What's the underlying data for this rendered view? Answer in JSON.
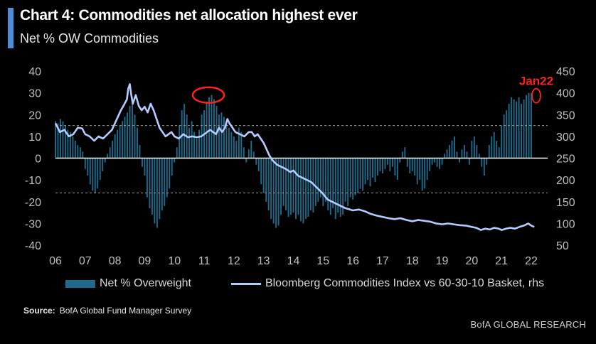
{
  "header": {
    "title": "Chart 4: Commodities net allocation highest ever",
    "subtitle": "Net % OW Commodities",
    "accent_color": "#4a90d9"
  },
  "footer": {
    "source_label": "Source:",
    "source_text": "BofA Global Fund Manager Survey",
    "brand": "BofA GLOBAL RESEARCH"
  },
  "chart_data": {
    "type": "bar",
    "title": "Chart 4: Commodities net allocation highest ever",
    "subtitle": "Net % OW Commodities",
    "x_range": [
      2006,
      2022.55
    ],
    "x_ticks": [
      "06",
      "07",
      "08",
      "09",
      "10",
      "11",
      "12",
      "13",
      "14",
      "15",
      "16",
      "17",
      "18",
      "19",
      "20",
      "21",
      "22"
    ],
    "y_left": {
      "range": [
        -40,
        40
      ],
      "ticks": [
        40,
        30,
        20,
        10,
        0,
        -10,
        -20,
        -30,
        -40
      ]
    },
    "y_right": {
      "range": [
        50,
        450
      ],
      "ticks": [
        450,
        400,
        350,
        300,
        250,
        200,
        150,
        100,
        50
      ]
    },
    "reference_lines": [
      15,
      -16
    ],
    "grid": false,
    "legend_position": "bottom",
    "colors": {
      "bars": "#1f6a8a",
      "line": "#b3cbff",
      "annotation": "#ff2020"
    },
    "annotations": [
      {
        "text": "Jan22",
        "x": 2022.0,
        "y": 29,
        "shape": "ellipse"
      },
      {
        "text": "",
        "x": 2011.0,
        "y": 28,
        "shape": "ellipse"
      }
    ],
    "series": [
      {
        "name": "Net % Overweight",
        "type": "bar",
        "axis": "left",
        "monthly_start": 2006.0,
        "values": [
          17,
          16,
          18,
          17,
          15,
          13,
          12,
          10,
          8,
          6,
          5,
          3,
          -5,
          -8,
          -12,
          -15,
          -16,
          -14,
          -10,
          -6,
          -2,
          2,
          5,
          8,
          11,
          13,
          15,
          17,
          19,
          21,
          24,
          25,
          20,
          14,
          6,
          -4,
          -8,
          -18,
          -23,
          -26,
          -30,
          -32,
          -28,
          -24,
          -22,
          -18,
          -14,
          -8,
          -2,
          5,
          15,
          22,
          25,
          20,
          14,
          17,
          12,
          9,
          13,
          20,
          22,
          26,
          28,
          29,
          27,
          24,
          20,
          21,
          19,
          16,
          14,
          12,
          10,
          8,
          14,
          12,
          5,
          -2,
          4,
          8,
          3,
          -3,
          -6,
          -12,
          -16,
          -20,
          -24,
          -28,
          -30,
          -32,
          -31,
          -26,
          -22,
          -24,
          -27,
          -26,
          -25,
          -28,
          -26,
          -29,
          -30,
          -28,
          -27,
          -24,
          -25,
          -22,
          -20,
          -18,
          -22,
          -20,
          -24,
          -26,
          -23,
          -28,
          -25,
          -27,
          -26,
          -20,
          -22,
          -18,
          -19,
          -17,
          -16,
          -14,
          -15,
          -12,
          -10,
          -13,
          -9,
          -11,
          -8,
          -6,
          -7,
          -5,
          -3,
          -6,
          -4,
          -8,
          -10,
          -2,
          3,
          5,
          -4,
          -7,
          -6,
          -8,
          -12,
          -10,
          -15,
          -14,
          -10,
          -6,
          -3,
          -2,
          -4,
          -5,
          -3,
          2,
          4,
          6,
          8,
          10,
          3,
          -2,
          4,
          6,
          3,
          -3,
          8,
          10,
          6,
          2,
          -4,
          -8,
          -3,
          6,
          10,
          12,
          8,
          5,
          15,
          20,
          22,
          25,
          28,
          27,
          26,
          28,
          25,
          27,
          29,
          30,
          30
        ]
      },
      {
        "name": "Bloomberg Commodities Index vs 60-30-10 Basket, rhs",
        "type": "line",
        "axis": "right",
        "points": [
          [
            2006.0,
            330
          ],
          [
            2006.15,
            310
          ],
          [
            2006.3,
            315
          ],
          [
            2006.45,
            300
          ],
          [
            2006.6,
            305
          ],
          [
            2006.75,
            320
          ],
          [
            2006.9,
            318
          ],
          [
            2007.0,
            305
          ],
          [
            2007.15,
            300
          ],
          [
            2007.3,
            290
          ],
          [
            2007.45,
            300
          ],
          [
            2007.6,
            295
          ],
          [
            2007.75,
            305
          ],
          [
            2007.9,
            315
          ],
          [
            2008.0,
            330
          ],
          [
            2008.1,
            345
          ],
          [
            2008.2,
            360
          ],
          [
            2008.3,
            372
          ],
          [
            2008.4,
            385
          ],
          [
            2008.45,
            410
          ],
          [
            2008.5,
            420
          ],
          [
            2008.55,
            395
          ],
          [
            2008.6,
            375
          ],
          [
            2008.7,
            395
          ],
          [
            2008.8,
            370
          ],
          [
            2008.9,
            360
          ],
          [
            2009.0,
            368
          ],
          [
            2009.1,
            355
          ],
          [
            2009.2,
            375
          ],
          [
            2009.3,
            360
          ],
          [
            2009.4,
            340
          ],
          [
            2009.5,
            320
          ],
          [
            2009.6,
            310
          ],
          [
            2009.7,
            300
          ],
          [
            2009.8,
            305
          ],
          [
            2009.9,
            310
          ],
          [
            2010.0,
            300
          ],
          [
            2010.15,
            295
          ],
          [
            2010.3,
            305
          ],
          [
            2010.45,
            298
          ],
          [
            2010.6,
            300
          ],
          [
            2010.75,
            298
          ],
          [
            2010.9,
            300
          ],
          [
            2011.0,
            305
          ],
          [
            2011.1,
            310
          ],
          [
            2011.2,
            315
          ],
          [
            2011.3,
            310
          ],
          [
            2011.4,
            305
          ],
          [
            2011.5,
            320
          ],
          [
            2011.6,
            310
          ],
          [
            2011.7,
            320
          ],
          [
            2011.78,
            340
          ],
          [
            2011.85,
            330
          ],
          [
            2011.95,
            320
          ],
          [
            2012.05,
            310
          ],
          [
            2012.2,
            305
          ],
          [
            2012.35,
            300
          ],
          [
            2012.5,
            310
          ],
          [
            2012.6,
            310
          ],
          [
            2012.7,
            300
          ],
          [
            2012.8,
            305
          ],
          [
            2012.9,
            295
          ],
          [
            2013.0,
            285
          ],
          [
            2013.1,
            270
          ],
          [
            2013.2,
            255
          ],
          [
            2013.3,
            245
          ],
          [
            2013.45,
            235
          ],
          [
            2013.6,
            230
          ],
          [
            2013.75,
            225
          ],
          [
            2013.9,
            218
          ],
          [
            2014.0,
            222
          ],
          [
            2014.15,
            210
          ],
          [
            2014.3,
            205
          ],
          [
            2014.45,
            200
          ],
          [
            2014.6,
            195
          ],
          [
            2014.75,
            185
          ],
          [
            2014.9,
            175
          ],
          [
            2015.0,
            168
          ],
          [
            2015.15,
            155
          ],
          [
            2015.3,
            150
          ],
          [
            2015.45,
            145
          ],
          [
            2015.6,
            140
          ],
          [
            2015.75,
            135
          ],
          [
            2015.9,
            132
          ],
          [
            2016.0,
            130
          ],
          [
            2016.2,
            132
          ],
          [
            2016.4,
            128
          ],
          [
            2016.6,
            122
          ],
          [
            2016.8,
            118
          ],
          [
            2017.0,
            115
          ],
          [
            2017.2,
            112
          ],
          [
            2017.4,
            110
          ],
          [
            2017.6,
            112
          ],
          [
            2017.8,
            108
          ],
          [
            2018.0,
            105
          ],
          [
            2018.2,
            108
          ],
          [
            2018.4,
            106
          ],
          [
            2018.6,
            104
          ],
          [
            2018.8,
            100
          ],
          [
            2019.0,
            98
          ],
          [
            2019.2,
            100
          ],
          [
            2019.4,
            98
          ],
          [
            2019.6,
            96
          ],
          [
            2019.8,
            95
          ],
          [
            2020.0,
            92
          ],
          [
            2020.15,
            90
          ],
          [
            2020.3,
            85
          ],
          [
            2020.45,
            88
          ],
          [
            2020.6,
            86
          ],
          [
            2020.75,
            90
          ],
          [
            2020.9,
            88
          ],
          [
            2021.0,
            85
          ],
          [
            2021.15,
            88
          ],
          [
            2021.3,
            90
          ],
          [
            2021.45,
            88
          ],
          [
            2021.6,
            92
          ],
          [
            2021.75,
            95
          ],
          [
            2021.9,
            100
          ],
          [
            2022.0,
            95
          ],
          [
            2022.1,
            92
          ]
        ]
      }
    ]
  }
}
